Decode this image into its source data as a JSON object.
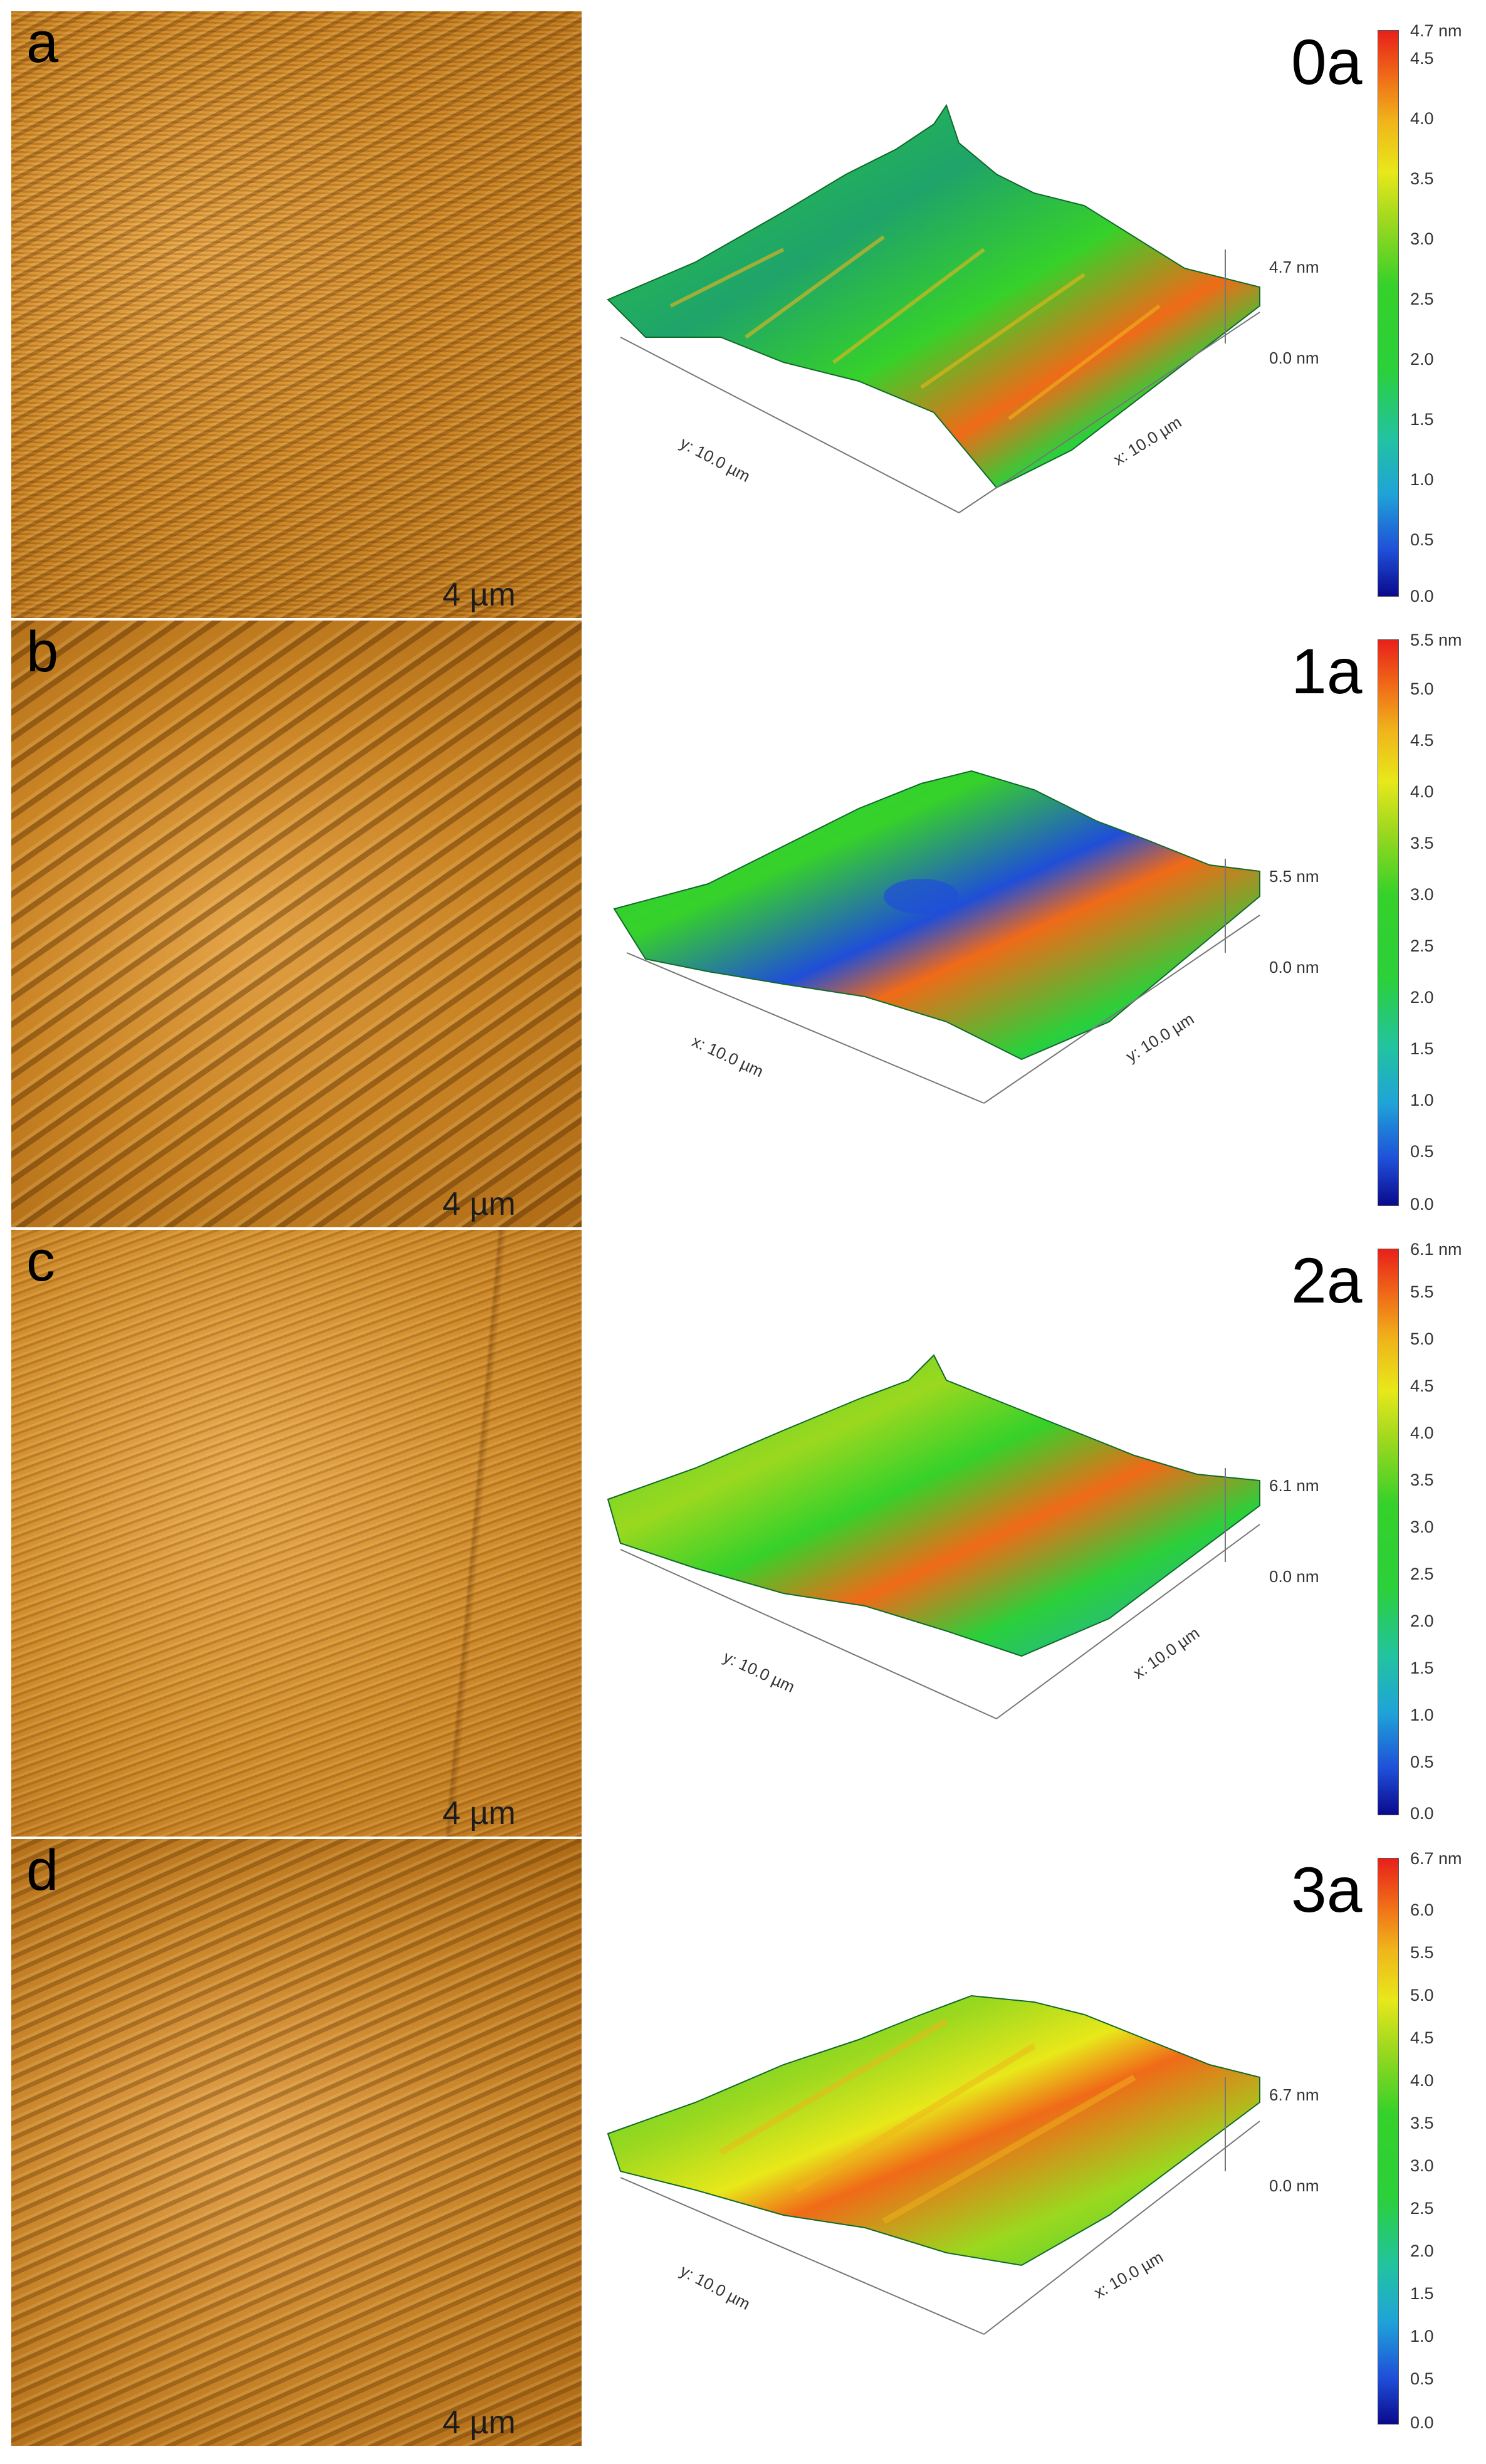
{
  "panels": [
    {
      "letter": "a",
      "scale_label": "4 µm",
      "sample_label": "0a",
      "surface_axes": {
        "left_axis": "y: 10.0 µm",
        "right_axis": "x: 10.0 µm"
      },
      "z_axis": {
        "top": "4.7 nm",
        "bottom": "0.0 nm"
      },
      "colorbar": {
        "max_label": "4.7 nm",
        "ticks": [
          "4.5",
          "4.0",
          "3.5",
          "3.0",
          "2.5",
          "2.0",
          "1.5",
          "1.0",
          "0.5",
          "0.0"
        ]
      }
    },
    {
      "letter": "b",
      "scale_label": "4 µm",
      "sample_label": "1a",
      "surface_axes": {
        "left_axis": "x: 10.0 µm",
        "right_axis": "y: 10.0 µm"
      },
      "z_axis": {
        "top": "5.5 nm",
        "bottom": "0.0 nm"
      },
      "colorbar": {
        "max_label": "5.5 nm",
        "ticks": [
          "5.0",
          "4.5",
          "4.0",
          "3.5",
          "3.0",
          "2.5",
          "2.0",
          "1.5",
          "1.0",
          "0.5",
          "0.0"
        ]
      }
    },
    {
      "letter": "c",
      "scale_label": "4 µm",
      "sample_label": "2a",
      "surface_axes": {
        "left_axis": "y: 10.0 µm",
        "right_axis": "x: 10.0 µm"
      },
      "z_axis": {
        "top": "6.1 nm",
        "bottom": "0.0 nm"
      },
      "colorbar": {
        "max_label": "6.1 nm",
        "ticks": [
          "5.5",
          "5.0",
          "4.5",
          "4.0",
          "3.5",
          "3.0",
          "2.5",
          "2.0",
          "1.5",
          "1.0",
          "0.5",
          "0.0"
        ]
      }
    },
    {
      "letter": "d",
      "scale_label": "4 µm",
      "sample_label": "3a",
      "surface_axes": {
        "left_axis": "y: 10.0 µm",
        "right_axis": "x: 10.0 µm"
      },
      "z_axis": {
        "top": "6.7 nm",
        "bottom": "0.0 nm"
      },
      "colorbar": {
        "max_label": "6.7 nm",
        "ticks": [
          "6.0",
          "5.5",
          "5.0",
          "4.5",
          "4.0",
          "3.5",
          "3.0",
          "2.5",
          "2.0",
          "1.5",
          "1.0",
          "0.5",
          "0.0"
        ]
      }
    }
  ],
  "colors": {
    "afm_amplitude": "#c98425",
    "colormap_low": "#0a0a8c",
    "colormap_mid": "#2bd03a",
    "colormap_high": "#e8201a"
  }
}
